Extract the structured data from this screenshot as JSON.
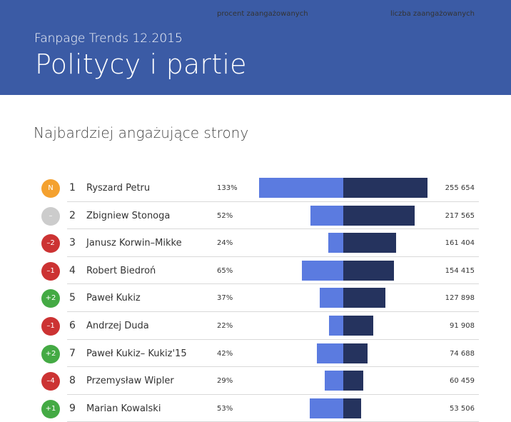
{
  "header": {
    "subtitle": "Fanpage Trends 12.2015",
    "title": "Politycy i partie"
  },
  "section_title": "Najbardziej angażujące strony",
  "colors": {
    "header_bg": "#3b5ba5",
    "bar_percent": "#5b7be0",
    "bar_count": "#25335e",
    "badge_new": "#f4a12f",
    "badge_same": "#cccccc",
    "badge_down": "#cc3333",
    "badge_up": "#44aa44"
  },
  "chart_data": {
    "type": "bar",
    "title": "Najbardziej angażujące strony",
    "columns": {
      "percent_label": "procent zaangażowanych",
      "count_label": "liczba zaangażowanych"
    },
    "scale": {
      "percent_max": 133,
      "count_max": 255654
    },
    "rows": [
      {
        "rank": "1",
        "name": "Ryszard Petru",
        "change": "N",
        "change_type": "new",
        "percent": 133,
        "percent_label": "133%",
        "count": 255654,
        "count_label": "255 654"
      },
      {
        "rank": "2",
        "name": "Zbigniew Stonoga",
        "change": "–",
        "change_type": "same",
        "percent": 52,
        "percent_label": "52%",
        "count": 217565,
        "count_label": "217 565"
      },
      {
        "rank": "3",
        "name": "Janusz Korwin–Mikke",
        "change": "–2",
        "change_type": "down",
        "percent": 24,
        "percent_label": "24%",
        "count": 161404,
        "count_label": "161 404"
      },
      {
        "rank": "4",
        "name": "Robert Biedroń",
        "change": "–1",
        "change_type": "down",
        "percent": 65,
        "percent_label": "65%",
        "count": 154415,
        "count_label": "154 415"
      },
      {
        "rank": "5",
        "name": "Paweł Kukiz",
        "change": "+2",
        "change_type": "up",
        "percent": 37,
        "percent_label": "37%",
        "count": 127898,
        "count_label": "127 898"
      },
      {
        "rank": "6",
        "name": "Andrzej Duda",
        "change": "–1",
        "change_type": "down",
        "percent": 22,
        "percent_label": "22%",
        "count": 91908,
        "count_label": "91 908"
      },
      {
        "rank": "7",
        "name": "Paweł Kukiz– Kukiz'15",
        "change": "+2",
        "change_type": "up",
        "percent": 42,
        "percent_label": "42%",
        "count": 74688,
        "count_label": "74 688"
      },
      {
        "rank": "8",
        "name": "Przemysław Wipler",
        "change": "–4",
        "change_type": "down",
        "percent": 29,
        "percent_label": "29%",
        "count": 60459,
        "count_label": "60 459"
      },
      {
        "rank": "9",
        "name": "Marian Kowalski",
        "change": "+1",
        "change_type": "up",
        "percent": 53,
        "percent_label": "53%",
        "count": 53506,
        "count_label": "53 506"
      }
    ]
  }
}
